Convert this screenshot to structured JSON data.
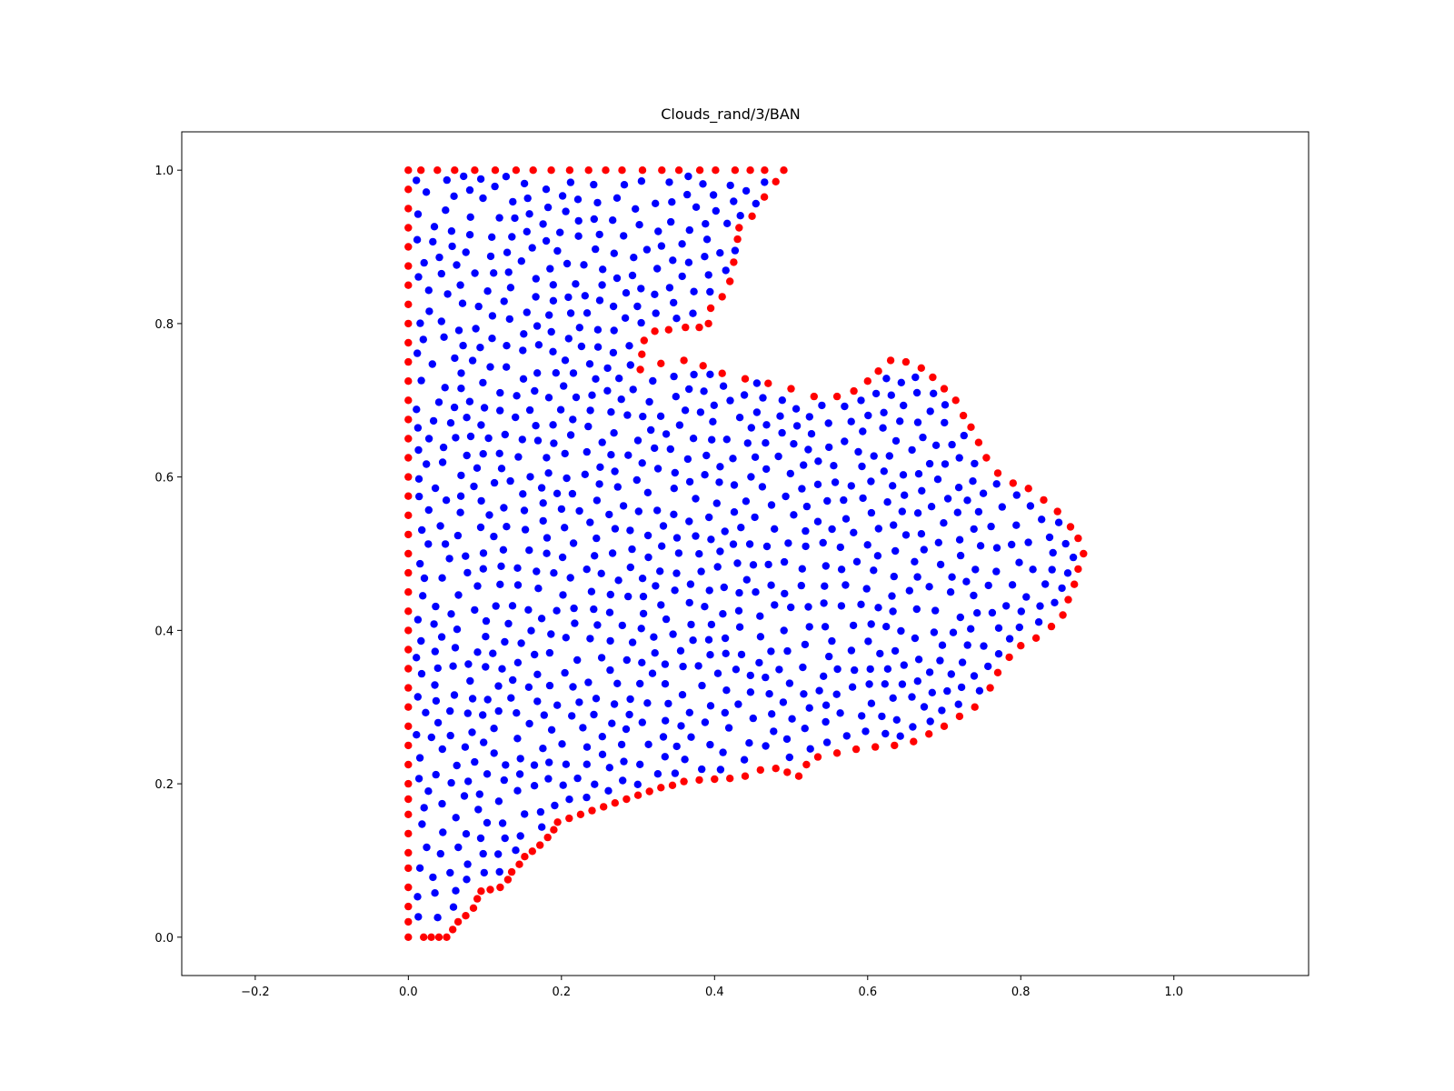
{
  "chart_data": {
    "type": "scatter",
    "title": "Clouds_rand/3/BAN",
    "xlabel": "",
    "ylabel": "",
    "xlim": [
      -0.296,
      1.176
    ],
    "ylim": [
      -0.05,
      1.05
    ],
    "xticks": [
      -0.2,
      0.0,
      0.2,
      0.4,
      0.6,
      0.8,
      1.0
    ],
    "xtick_labels": [
      "−0.2",
      "0.0",
      "0.2",
      "0.4",
      "0.6",
      "0.8",
      "1.0"
    ],
    "yticks": [
      0.0,
      0.2,
      0.4,
      0.6,
      0.8,
      1.0
    ],
    "ytick_labels": [
      "0.0",
      "0.2",
      "0.4",
      "0.6",
      "0.8",
      "1.0"
    ],
    "grid": false,
    "series": [
      {
        "name": "boundary",
        "color": "#ff0000",
        "kind": "boundary-points",
        "points": [
          [
            0.0,
            1.0
          ],
          [
            0.0165,
            1.0
          ],
          [
            0.0379,
            1.0
          ],
          [
            0.0605,
            1.0
          ],
          [
            0.0867,
            1.0
          ],
          [
            0.1136,
            1.0
          ],
          [
            0.1407,
            1.0
          ],
          [
            0.1631,
            1.0
          ],
          [
            0.1867,
            1.0
          ],
          [
            0.2108,
            1.0
          ],
          [
            0.2355,
            1.0
          ],
          [
            0.2578,
            1.0
          ],
          [
            0.2792,
            1.0
          ],
          [
            0.3059,
            1.0
          ],
          [
            0.3312,
            1.0
          ],
          [
            0.3535,
            1.0
          ],
          [
            0.3808,
            1.0
          ],
          [
            0.4013,
            1.0
          ],
          [
            0.4268,
            1.0
          ],
          [
            0.4467,
            1.0
          ],
          [
            0.4654,
            1.0
          ],
          [
            0.4905,
            1.0
          ],
          [
            0.48,
            0.985
          ],
          [
            0.465,
            0.965
          ],
          [
            0.449,
            0.94
          ],
          [
            0.432,
            0.925
          ],
          [
            0.43,
            0.91
          ],
          [
            0.425,
            0.88
          ],
          [
            0.42,
            0.855
          ],
          [
            0.41,
            0.835
          ],
          [
            0.395,
            0.82
          ],
          [
            0.392,
            0.8
          ],
          [
            0.38,
            0.795
          ],
          [
            0.362,
            0.795
          ],
          [
            0.34,
            0.792
          ],
          [
            0.322,
            0.79
          ],
          [
            0.308,
            0.778
          ],
          [
            0.305,
            0.76
          ],
          [
            0.303,
            0.74
          ],
          [
            0.33,
            0.748
          ],
          [
            0.36,
            0.752
          ],
          [
            0.385,
            0.745
          ],
          [
            0.41,
            0.735
          ],
          [
            0.44,
            0.728
          ],
          [
            0.47,
            0.722
          ],
          [
            0.5,
            0.715
          ],
          [
            0.53,
            0.705
          ],
          [
            0.56,
            0.705
          ],
          [
            0.582,
            0.712
          ],
          [
            0.6,
            0.725
          ],
          [
            0.614,
            0.738
          ],
          [
            0.63,
            0.752
          ],
          [
            0.65,
            0.75
          ],
          [
            0.67,
            0.742
          ],
          [
            0.685,
            0.73
          ],
          [
            0.7,
            0.715
          ],
          [
            0.715,
            0.7
          ],
          [
            0.725,
            0.68
          ],
          [
            0.735,
            0.665
          ],
          [
            0.745,
            0.645
          ],
          [
            0.755,
            0.625
          ],
          [
            0.77,
            0.605
          ],
          [
            0.79,
            0.592
          ],
          [
            0.81,
            0.585
          ],
          [
            0.83,
            0.57
          ],
          [
            0.848,
            0.555
          ],
          [
            0.865,
            0.535
          ],
          [
            0.875,
            0.52
          ],
          [
            0.882,
            0.5
          ],
          [
            0.875,
            0.48
          ],
          [
            0.87,
            0.46
          ],
          [
            0.862,
            0.44
          ],
          [
            0.855,
            0.42
          ],
          [
            0.84,
            0.405
          ],
          [
            0.82,
            0.39
          ],
          [
            0.8,
            0.38
          ],
          [
            0.785,
            0.365
          ],
          [
            0.77,
            0.345
          ],
          [
            0.76,
            0.325
          ],
          [
            0.74,
            0.3
          ],
          [
            0.72,
            0.288
          ],
          [
            0.7,
            0.275
          ],
          [
            0.68,
            0.265
          ],
          [
            0.66,
            0.255
          ],
          [
            0.635,
            0.25
          ],
          [
            0.61,
            0.248
          ],
          [
            0.585,
            0.245
          ],
          [
            0.56,
            0.24
          ],
          [
            0.535,
            0.235
          ],
          [
            0.52,
            0.225
          ],
          [
            0.51,
            0.21
          ],
          [
            0.495,
            0.215
          ],
          [
            0.48,
            0.22
          ],
          [
            0.46,
            0.218
          ],
          [
            0.44,
            0.21
          ],
          [
            0.42,
            0.207
          ],
          [
            0.4,
            0.206
          ],
          [
            0.38,
            0.205
          ],
          [
            0.36,
            0.203
          ],
          [
            0.345,
            0.198
          ],
          [
            0.33,
            0.195
          ],
          [
            0.315,
            0.19
          ],
          [
            0.3,
            0.185
          ],
          [
            0.285,
            0.18
          ],
          [
            0.27,
            0.175
          ],
          [
            0.255,
            0.17
          ],
          [
            0.24,
            0.165
          ],
          [
            0.225,
            0.16
          ],
          [
            0.21,
            0.155
          ],
          [
            0.195,
            0.15
          ],
          [
            0.19,
            0.14
          ],
          [
            0.182,
            0.13
          ],
          [
            0.172,
            0.12
          ],
          [
            0.162,
            0.112
          ],
          [
            0.152,
            0.105
          ],
          [
            0.145,
            0.095
          ],
          [
            0.135,
            0.085
          ],
          [
            0.13,
            0.075
          ],
          [
            0.12,
            0.065
          ],
          [
            0.107,
            0.062
          ],
          [
            0.095,
            0.06
          ],
          [
            0.09,
            0.05
          ],
          [
            0.085,
            0.038
          ],
          [
            0.075,
            0.028
          ],
          [
            0.065,
            0.02
          ],
          [
            0.058,
            0.01
          ],
          [
            0.05,
            0.0
          ],
          [
            0.04,
            0.0
          ],
          [
            0.03,
            0.0
          ],
          [
            0.02,
            0.0
          ],
          [
            0.0,
            0.0
          ],
          [
            0.0,
            0.02
          ],
          [
            0.0,
            0.04
          ],
          [
            0.0,
            0.065
          ],
          [
            0.0,
            0.09
          ],
          [
            0.0,
            0.11
          ],
          [
            0.0,
            0.135
          ],
          [
            0.0,
            0.16
          ],
          [
            0.0,
            0.18
          ],
          [
            0.0,
            0.2
          ],
          [
            0.0,
            0.225
          ],
          [
            0.0,
            0.25
          ],
          [
            0.0,
            0.275
          ],
          [
            0.0,
            0.3
          ],
          [
            0.0,
            0.325
          ],
          [
            0.0,
            0.35
          ],
          [
            0.0,
            0.375
          ],
          [
            0.0,
            0.4
          ],
          [
            0.0,
            0.425
          ],
          [
            0.0,
            0.45
          ],
          [
            0.0,
            0.475
          ],
          [
            0.0,
            0.5
          ],
          [
            0.0,
            0.525
          ],
          [
            0.0,
            0.55
          ],
          [
            0.0,
            0.575
          ],
          [
            0.0,
            0.6
          ],
          [
            0.0,
            0.625
          ],
          [
            0.0,
            0.65
          ],
          [
            0.0,
            0.675
          ],
          [
            0.0,
            0.7
          ],
          [
            0.0,
            0.725
          ],
          [
            0.0,
            0.75
          ],
          [
            0.0,
            0.775
          ],
          [
            0.0,
            0.8
          ],
          [
            0.0,
            0.825
          ],
          [
            0.0,
            0.85
          ],
          [
            0.0,
            0.875
          ],
          [
            0.0,
            0.9
          ],
          [
            0.0,
            0.925
          ],
          [
            0.0,
            0.95
          ],
          [
            0.0,
            0.975
          ]
        ]
      },
      {
        "name": "interior",
        "color": "#0000ff",
        "kind": "interior-points",
        "approx_count": 1450,
        "seed": 3,
        "min_spacing": 0.0195,
        "region_polygon_note": "interior points fill the region enclosed by the boundary series"
      }
    ]
  }
}
